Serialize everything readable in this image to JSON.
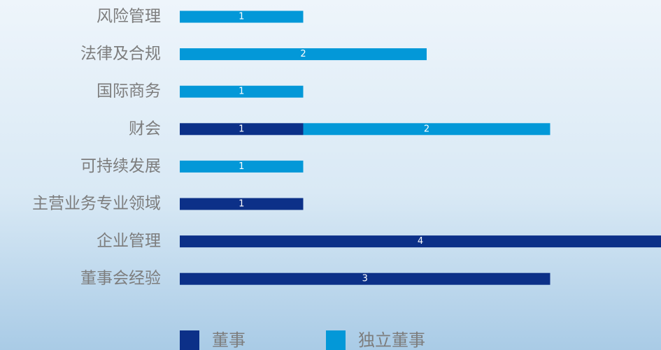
{
  "chart_data": {
    "type": "stacked-bar-horizontal",
    "categories": [
      "风险管理",
      "法律及合规",
      "国际商务",
      "财会",
      "可持续发展",
      "主营业务专业领域",
      "企业管理",
      "董事会经验"
    ],
    "series": [
      {
        "name": "董事",
        "color": "#0c3088",
        "values": [
          null,
          null,
          null,
          1,
          null,
          1,
          4,
          3
        ]
      },
      {
        "name": "独立董事",
        "color": "#0398d8",
        "values": [
          1,
          2,
          1,
          2,
          1,
          null,
          null,
          null
        ]
      }
    ],
    "xlim": [
      0,
      4
    ]
  }
}
